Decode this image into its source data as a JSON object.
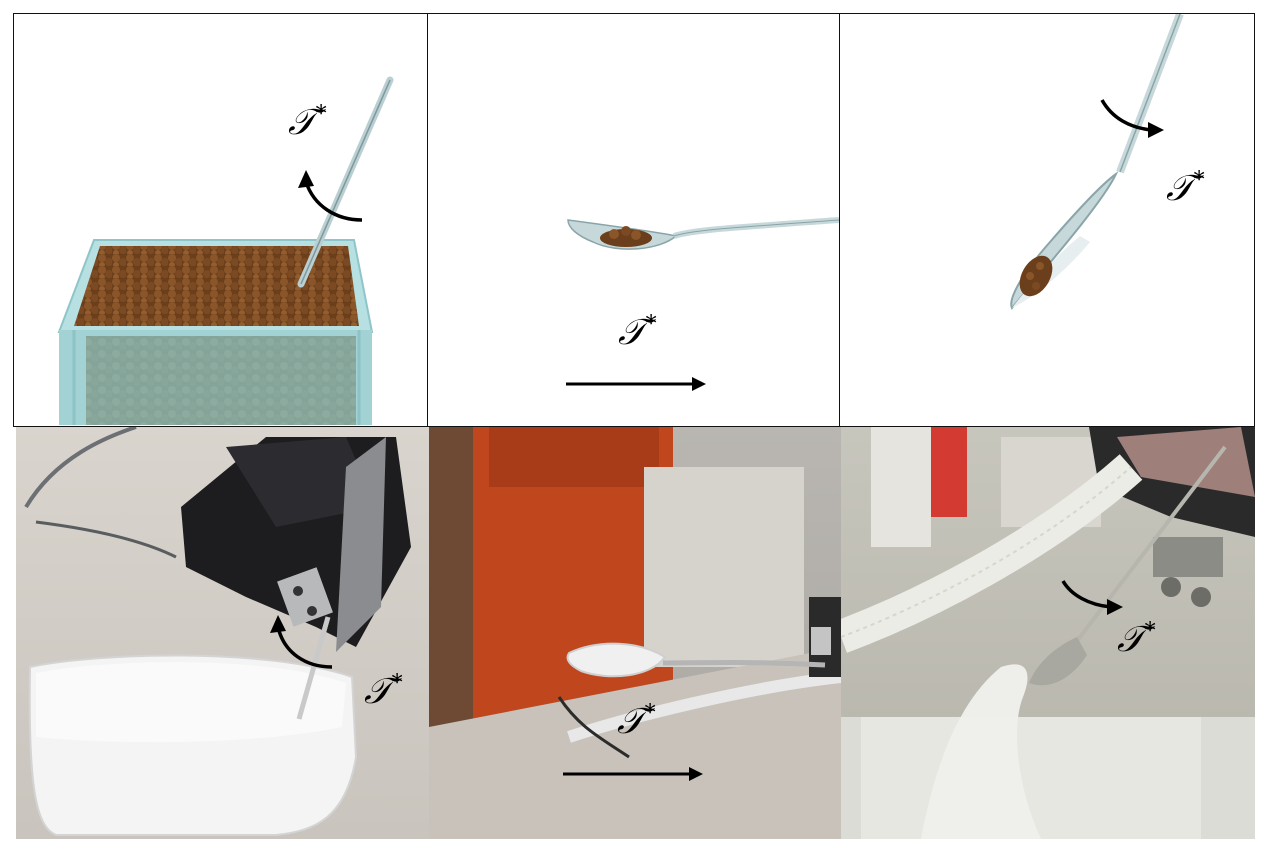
{
  "figure": {
    "panels": [
      {
        "id": "sim-scoop",
        "row": "simulation",
        "motion": "rotate-counterclockwise",
        "label": "𝒯",
        "label_sup": "*"
      },
      {
        "id": "sim-transport",
        "row": "simulation",
        "motion": "translate-right",
        "label": "𝒯",
        "label_sup": "*"
      },
      {
        "id": "sim-pour",
        "row": "simulation",
        "motion": "rotate-clockwise",
        "label": "𝒯",
        "label_sup": "*"
      },
      {
        "id": "real-scoop",
        "row": "real",
        "motion": "rotate-counterclockwise",
        "label": "𝒯",
        "label_sup": "*"
      },
      {
        "id": "real-transport",
        "row": "real",
        "motion": "translate-right",
        "label": "𝒯",
        "label_sup": "*"
      },
      {
        "id": "real-pour",
        "row": "real",
        "motion": "rotate-clockwise",
        "label": "𝒯",
        "label_sup": "*"
      }
    ],
    "colors": {
      "granules": "#7a4a22",
      "container": "#a8d4d6",
      "spoon": "#b9cfd2",
      "powder": "#f2f2f2",
      "arrow": "#000000",
      "background_orange": "#c0461e"
    }
  }
}
